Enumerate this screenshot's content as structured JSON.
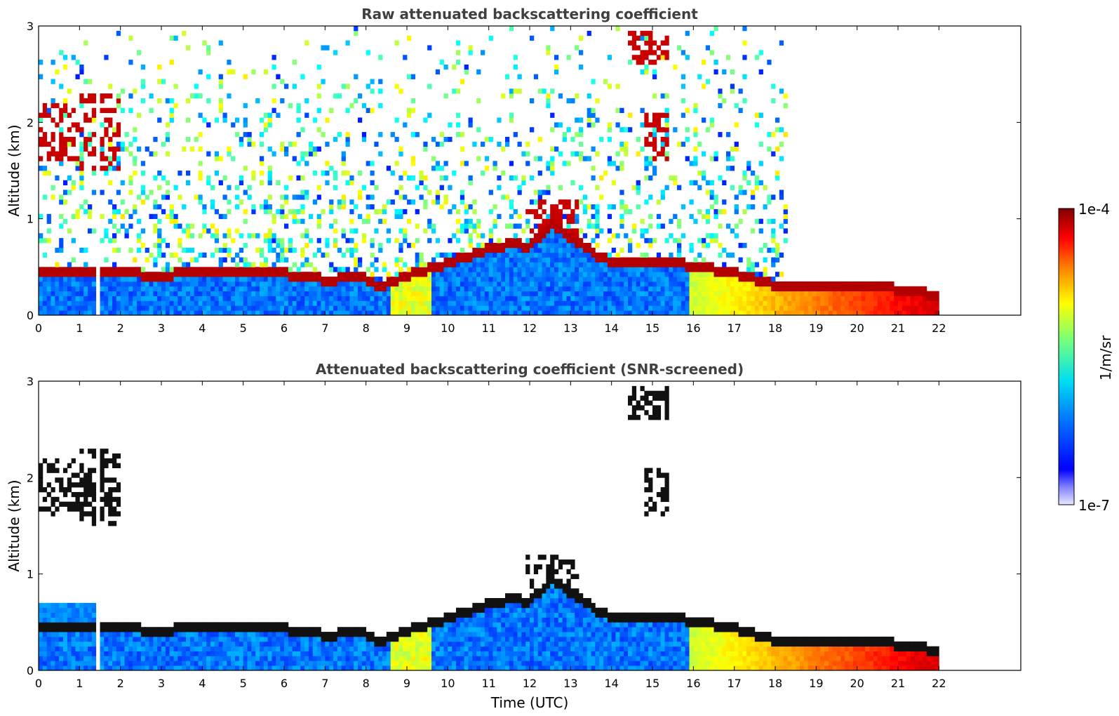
{
  "chart_data": [
    {
      "type": "heatmap",
      "title": "Raw attenuated backscattering coefficient",
      "xlabel": "",
      "ylabel": "Altitude (km)",
      "xlim": [
        0,
        24
      ],
      "ylim": [
        0,
        3
      ],
      "xticks": [
        "0",
        "1",
        "2",
        "3",
        "4",
        "5",
        "6",
        "7",
        "8",
        "9",
        "10",
        "11",
        "12",
        "13",
        "14",
        "15",
        "16",
        "17",
        "18",
        "19",
        "20",
        "21",
        "22"
      ],
      "yticks": [
        "0",
        "1",
        "2",
        "3"
      ],
      "data_end_time": 22,
      "data_gap": [
        1.42,
        1.55
      ],
      "boundary_layer_top_km": [
        [
          2.0,
          0.45
        ],
        [
          3.0,
          0.42
        ],
        [
          4.0,
          0.47
        ],
        [
          5.0,
          0.47
        ],
        [
          6.0,
          0.44
        ],
        [
          7.0,
          0.38
        ],
        [
          8.0,
          0.4
        ],
        [
          8.3,
          0.3
        ],
        [
          9.0,
          0.42
        ],
        [
          10.0,
          0.55
        ],
        [
          11.0,
          0.7
        ],
        [
          11.5,
          0.75
        ],
        [
          12.0,
          0.72
        ],
        [
          12.5,
          0.95
        ],
        [
          13.0,
          0.82
        ],
        [
          13.7,
          0.62
        ],
        [
          14.0,
          0.55
        ],
        [
          15.0,
          0.58
        ],
        [
          16.0,
          0.52
        ],
        [
          17.0,
          0.45
        ],
        [
          18.0,
          0.32
        ],
        [
          19.0,
          0.3
        ],
        [
          20.0,
          0.32
        ],
        [
          21.0,
          0.28
        ],
        [
          22.0,
          0.22
        ]
      ],
      "cloud_layers": [
        {
          "time": [
            0.0,
            1.0
          ],
          "altitude_km": [
            1.6,
            2.2
          ]
        },
        {
          "time": [
            1.0,
            2.0
          ],
          "altitude_km": [
            1.5,
            2.3
          ]
        },
        {
          "time": [
            11.9,
            13.2
          ],
          "altitude_km": [
            0.8,
            1.2
          ]
        },
        {
          "time": [
            14.4,
            15.4
          ],
          "altitude_km": [
            2.6,
            2.95
          ]
        },
        {
          "time": [
            14.8,
            15.4
          ],
          "altitude_km": [
            1.6,
            2.1
          ]
        }
      ]
    },
    {
      "type": "heatmap",
      "title": "Attenuated backscattering coefficient (SNR-screened)",
      "xlabel": "Time (UTC)",
      "ylabel": "Altitude (km)",
      "xlim": [
        0,
        24
      ],
      "ylim": [
        0,
        3
      ],
      "xticks": [
        "0",
        "1",
        "2",
        "3",
        "4",
        "5",
        "6",
        "7",
        "8",
        "9",
        "10",
        "11",
        "12",
        "13",
        "14",
        "15",
        "16",
        "17",
        "18",
        "19",
        "20",
        "21",
        "22"
      ],
      "yticks": [
        "0",
        "1",
        "2",
        "3"
      ],
      "data_end_time": 22,
      "data_gap": [
        1.42,
        1.55
      ]
    }
  ],
  "colorbar": {
    "label": "1/m/sr",
    "max_label": "1e-4",
    "min_label": "1e-7",
    "scale": "log",
    "range": [
      1e-07,
      0.0001
    ],
    "colormap": "jet"
  },
  "colors": {
    "text_title": "#404040",
    "axis": "#000000",
    "background": "#ffffff"
  }
}
